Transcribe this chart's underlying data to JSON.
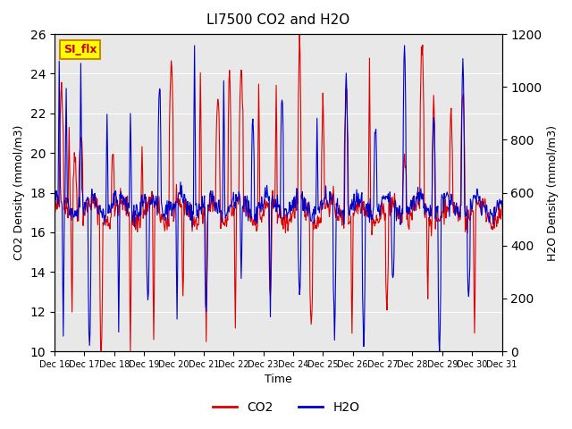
{
  "title": "LI7500 CO2 and H2O",
  "xlabel": "Time",
  "ylabel_left": "CO2 Density (mmol/m3)",
  "ylabel_right": "H2O Density (mmol/m3)",
  "ylim_left": [
    10,
    26
  ],
  "ylim_right": [
    0,
    1200
  ],
  "yticks_left": [
    10,
    12,
    14,
    16,
    18,
    20,
    22,
    24,
    26
  ],
  "yticks_right": [
    0,
    200,
    400,
    600,
    800,
    1000,
    1200
  ],
  "color_co2": "#dd0000",
  "color_h2o": "#0000cc",
  "background_color": "#e8e8e8",
  "figure_color": "#ffffff",
  "annotation_text": "SI_flx",
  "annotation_bg": "#ffff00",
  "annotation_border": "#cc8800",
  "annotation_text_color": "#cc0000",
  "n_days": 15,
  "x_tick_labels": [
    "Dec 16",
    "Dec 17",
    "Dec 18",
    "Dec 19",
    "Dec 20",
    "Dec 21",
    "Dec 22",
    "Dec 23",
    "Dec 24",
    "Dec 25",
    "Dec 26",
    "Dec 27",
    "Dec 28",
    "Dec 29",
    "Dec 30",
    "Dec 31"
  ],
  "seed": 42
}
